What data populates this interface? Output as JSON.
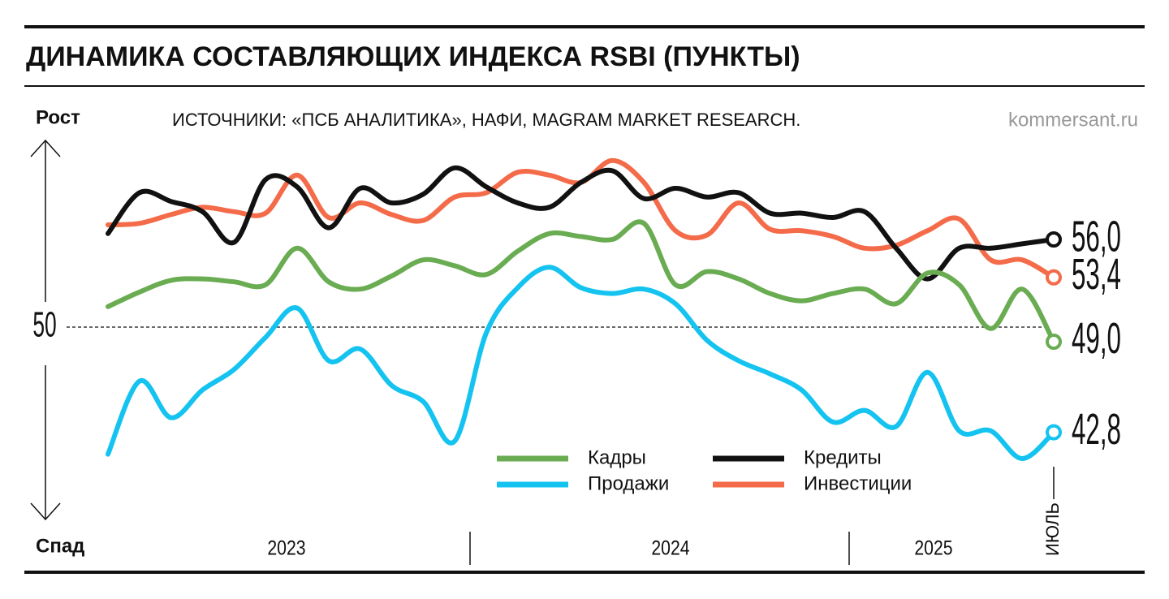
{
  "chart_data": {
    "type": "line",
    "title": "ДИНАМИКА СОСТАВЛЯЮЩИХ ИНДЕКСА RSBI (ПУНКТЫ)",
    "subtitle": "ИСТОЧНИКИ: «ПСБ АНАЛИТИКА», НАФИ, MAGRAM MARKET RESEARCH.",
    "credit": "kommersant.ru",
    "y_top_label": "Рост",
    "y_bottom_label": "Спад",
    "year_labels": [
      "2023",
      "2024",
      "2025"
    ],
    "categories": [
      null,
      null,
      null,
      null,
      null,
      null,
      null,
      null,
      null,
      null,
      null,
      null,
      null,
      null,
      null,
      null,
      null,
      null,
      null,
      null,
      null,
      null,
      null,
      null,
      null,
      null,
      null,
      null,
      null,
      null,
      "ИЮЛЬ"
    ],
    "ylim": [
      37,
      62
    ],
    "yticks": [
      50
    ],
    "series": [
      {
        "name": "Кадры",
        "color": "#6aac52",
        "values": [
          51.4,
          52.4,
          53.2,
          53.3,
          53.1,
          52.9,
          55.4,
          53.1,
          52.6,
          53.5,
          54.6,
          54.2,
          53.6,
          55.2,
          56.4,
          56.2,
          56.0,
          57.1,
          52.9,
          53.8,
          53.3,
          52.3,
          51.8,
          52.3,
          52.6,
          51.6,
          53.7,
          52.9,
          49.9,
          52.6,
          49.0
        ],
        "value_labels": [
          null,
          null,
          null,
          null,
          null,
          null,
          null,
          null,
          null,
          null,
          null,
          null,
          null,
          null,
          null,
          null,
          null,
          null,
          null,
          null,
          null,
          null,
          null,
          null,
          null,
          null,
          null,
          null,
          null,
          null,
          "49,0"
        ]
      },
      {
        "name": "Продажи",
        "color": "#14c3f0",
        "values": [
          41.3,
          46.3,
          43.8,
          45.7,
          47.1,
          49.3,
          51.3,
          47.7,
          48.5,
          46.0,
          44.9,
          42.2,
          49.6,
          52.7,
          54.1,
          52.7,
          52.3,
          52.6,
          51.6,
          49.1,
          47.7,
          46.8,
          45.7,
          43.5,
          44.3,
          43.2,
          46.9,
          42.9,
          42.9,
          41.0,
          42.8
        ],
        "value_labels": [
          null,
          null,
          null,
          null,
          null,
          null,
          null,
          null,
          null,
          null,
          null,
          null,
          null,
          null,
          null,
          null,
          null,
          null,
          null,
          null,
          null,
          null,
          null,
          null,
          null,
          null,
          null,
          null,
          null,
          null,
          "42,8"
        ]
      },
      {
        "name": "Кредиты",
        "color": "#111111",
        "values": [
          56.4,
          59.2,
          58.6,
          57.9,
          55.8,
          60.1,
          59.6,
          56.8,
          59.5,
          58.5,
          59.1,
          60.9,
          59.6,
          58.5,
          58.2,
          59.9,
          60.7,
          58.8,
          59.5,
          58.9,
          59.2,
          57.8,
          57.8,
          57.5,
          57.9,
          55.4,
          53.3,
          55.4,
          55.4,
          55.7,
          56.0
        ],
        "value_labels": [
          null,
          null,
          null,
          null,
          null,
          null,
          null,
          null,
          null,
          null,
          null,
          null,
          null,
          null,
          null,
          null,
          null,
          null,
          null,
          null,
          null,
          null,
          null,
          null,
          null,
          null,
          null,
          null,
          null,
          null,
          "56,0"
        ]
      },
      {
        "name": "Инвестиции",
        "color": "#f46b4a",
        "values": [
          57.0,
          57.1,
          57.7,
          58.2,
          57.9,
          57.8,
          60.4,
          57.5,
          58.5,
          57.7,
          57.3,
          58.9,
          59.2,
          60.6,
          60.4,
          59.9,
          61.4,
          59.9,
          56.6,
          56.3,
          58.5,
          56.7,
          56.6,
          56.2,
          55.4,
          55.6,
          56.6,
          57.4,
          54.6,
          54.6,
          53.4
        ],
        "value_labels": [
          null,
          null,
          null,
          null,
          null,
          null,
          null,
          null,
          null,
          null,
          null,
          null,
          null,
          null,
          null,
          null,
          null,
          null,
          null,
          null,
          null,
          null,
          null,
          null,
          null,
          null,
          null,
          null,
          null,
          null,
          "53,4"
        ]
      }
    ]
  }
}
